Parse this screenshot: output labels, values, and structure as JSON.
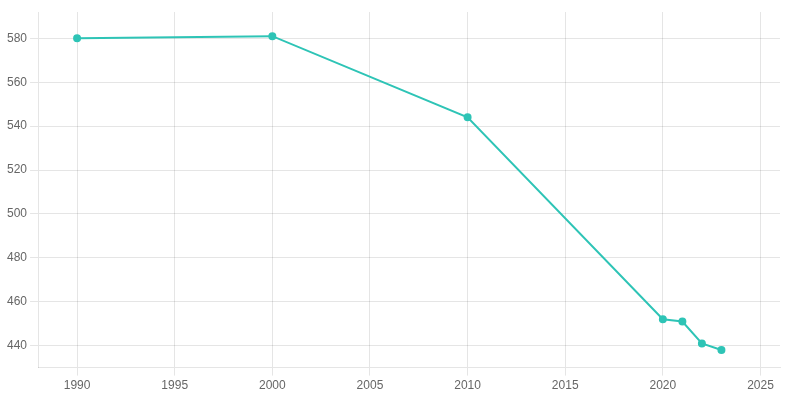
{
  "chart_data": {
    "type": "line",
    "x": [
      1990,
      2000,
      2010,
      2020,
      2021,
      2022,
      2023
    ],
    "values": [
      580,
      581,
      544,
      452,
      451,
      441,
      438
    ],
    "color": "#2ec4b6",
    "marker": "circle",
    "xlim": [
      1988,
      2026
    ],
    "ylim": [
      430,
      592
    ],
    "xticks": [
      1990,
      1995,
      2000,
      2005,
      2010,
      2015,
      2020,
      2025
    ],
    "yticks": [
      440,
      460,
      480,
      500,
      520,
      540,
      560,
      580
    ],
    "grid": true
  }
}
